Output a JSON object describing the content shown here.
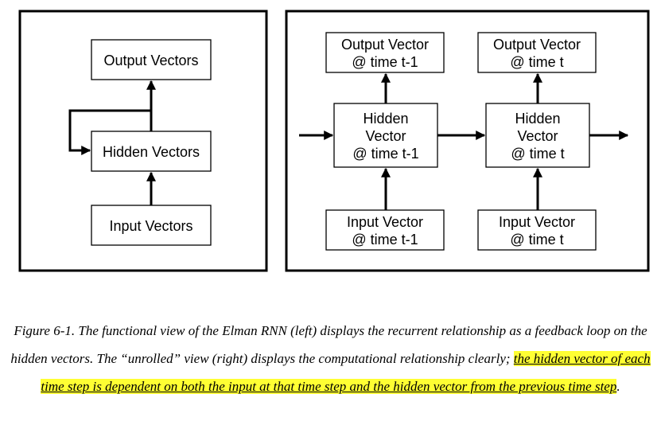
{
  "left_panel": {
    "output": "Output Vectors",
    "hidden": "Hidden Vectors",
    "input": "Input Vectors"
  },
  "right_panel": {
    "out_prev": [
      "Output Vector",
      "@ time t-1"
    ],
    "out_cur": [
      "Output Vector",
      "@ time t"
    ],
    "hid_prev": [
      "Hidden",
      "Vector",
      "@ time t-1"
    ],
    "hid_cur": [
      "Hidden",
      "Vector",
      "@ time t"
    ],
    "in_prev": [
      "Input Vector",
      "@ time t-1"
    ],
    "in_cur": [
      "Input Vector",
      "@ time t"
    ]
  },
  "caption": {
    "part1": "Figure 6-1. The functional view of the Elman RNN (left) displays the recurrent relationship as a feedback loop on the hidden vectors. The “unrolled” view (right) displays the computational relationship clearly; ",
    "highlight": "the hidden vector of each time step is dependent on both the input at that time step and the hidden vector from the previous time step",
    "part2": "."
  },
  "colors": {
    "highlight": "#ffff33",
    "stroke": "#000000"
  }
}
